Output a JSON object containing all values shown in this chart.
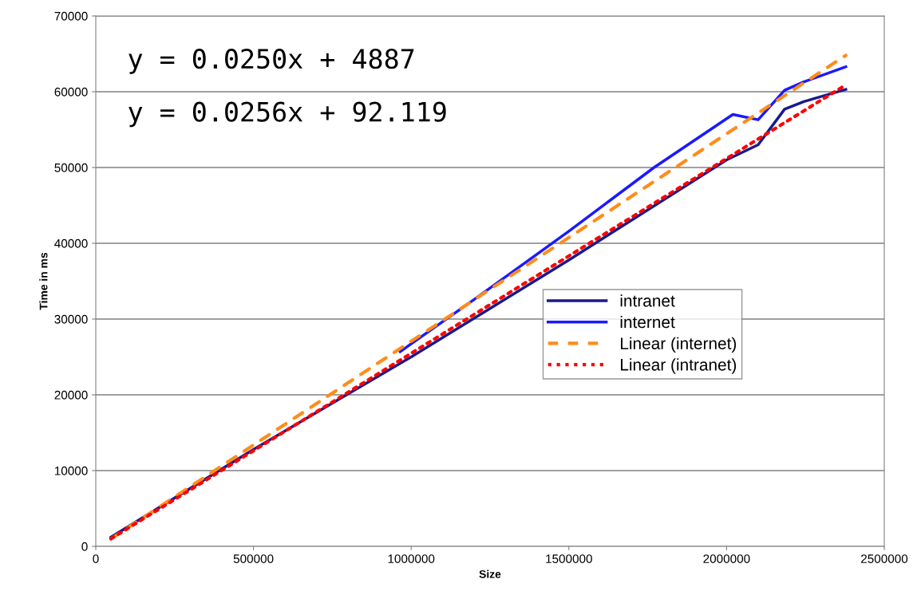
{
  "chart_data": {
    "type": "line",
    "xlabel": "Size",
    "ylabel": "Time in ms",
    "annotations": [
      "y = 0.0250x + 4887",
      "y = 0.0256x + 92.119"
    ],
    "xlim": [
      0,
      2500000
    ],
    "xticks": [
      0,
      500000,
      1000000,
      1500000,
      2000000,
      2500000
    ],
    "ylim": [
      0,
      70000
    ],
    "yticks": [
      0,
      10000,
      20000,
      30000,
      40000,
      50000,
      60000,
      70000
    ],
    "grid": "y",
    "legend": "center right",
    "marker": "none",
    "series": [
      {
        "name": "intranet",
        "color": "#1a1a8c",
        "line_style": "solid",
        "x": [
          48000,
          500000,
          1000000,
          1500000,
          2000000,
          2100000,
          2184000,
          2245000,
          2378000
        ],
        "values": [
          1200,
          12800,
          25000,
          37800,
          51000,
          53000,
          57700,
          58700,
          60300
        ]
      },
      {
        "name": "internet",
        "color": "#1a1aff",
        "line_style": "solid",
        "x": [
          965000,
          1200000,
          1500000,
          1770000,
          2020000,
          2100000,
          2184000,
          2245000,
          2378000
        ],
        "values": [
          25700,
          32600,
          41600,
          50000,
          57000,
          56300,
          60200,
          61300,
          63300
        ]
      },
      {
        "name": "Linear (internet)",
        "color": "#ff8c1a",
        "line_style": "dashed",
        "x": [
          48000,
          2378000
        ],
        "values": [
          1000,
          64800
        ]
      },
      {
        "name": "Linear (intranet)",
        "color": "#ff0000",
        "line_style": "dotted",
        "x": [
          48000,
          2378000
        ],
        "values": [
          1000,
          60900
        ]
      }
    ]
  }
}
